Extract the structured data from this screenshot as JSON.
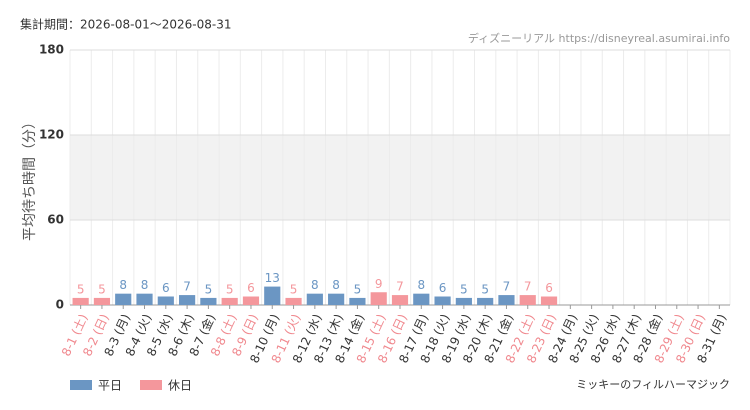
{
  "chart_data": {
    "type": "bar",
    "title": "集計期間：2026-08-01～2026-08-31",
    "source": "ディズニーリアル https://disneyreal.asumirai.info",
    "subtitle": "ミッキーのフィルハーマジック",
    "y_label": "平均待ち時間（分）",
    "categories": [
      "8-1 (土)",
      "8-2 (日)",
      "8-3 (月)",
      "8-4 (火)",
      "8-5 (水)",
      "8-6 (木)",
      "8-7 (金)",
      "8-8 (土)",
      "8-9 (日)",
      "8-10 (月)",
      "8-11 (火)",
      "8-12 (水)",
      "8-13 (木)",
      "8-14 (金)",
      "8-15 (土)",
      "8-16 (日)",
      "8-17 (月)",
      "8-18 (火)",
      "8-19 (水)",
      "8-20 (木)",
      "8-21 (金)",
      "8-22 (土)",
      "8-23 (日)",
      "8-24 (月)",
      "8-25 (火)",
      "8-26 (水)",
      "8-27 (木)",
      "8-28 (金)",
      "8-29 (土)",
      "8-30 (日)",
      "8-31 (月)"
    ],
    "category_colors": [
      "#f0888e",
      "#f0888e",
      "#333333",
      "#333333",
      "#333333",
      "#333333",
      "#333333",
      "#f0888e",
      "#f0888e",
      "#333333",
      "#f0888e",
      "#333333",
      "#333333",
      "#333333",
      "#f0888e",
      "#f0888e",
      "#333333",
      "#333333",
      "#333333",
      "#333333",
      "#333333",
      "#f0888e",
      "#f0888e",
      "#333333",
      "#333333",
      "#333333",
      "#333333",
      "#333333",
      "#f0888e",
      "#f0888e",
      "#333333"
    ],
    "series": [
      {
        "name": "平日",
        "color": "#6b96c3",
        "values": [
          null,
          null,
          8,
          8,
          6,
          7,
          5,
          null,
          null,
          13,
          null,
          8,
          8,
          5,
          null,
          null,
          8,
          6,
          5,
          5,
          7,
          null,
          null,
          null,
          null,
          null,
          null,
          null,
          null,
          null,
          null
        ]
      },
      {
        "name": "休日",
        "color": "#f4979c",
        "values": [
          5,
          5,
          null,
          null,
          null,
          null,
          null,
          5,
          6,
          null,
          5,
          null,
          null,
          null,
          9,
          7,
          null,
          null,
          null,
          null,
          null,
          7,
          6,
          null,
          null,
          null,
          null,
          null,
          null,
          null,
          null
        ]
      }
    ],
    "ylim": [
      0,
      180
    ],
    "yticks": [
      0,
      60,
      120,
      180
    ],
    "grid": true
  }
}
